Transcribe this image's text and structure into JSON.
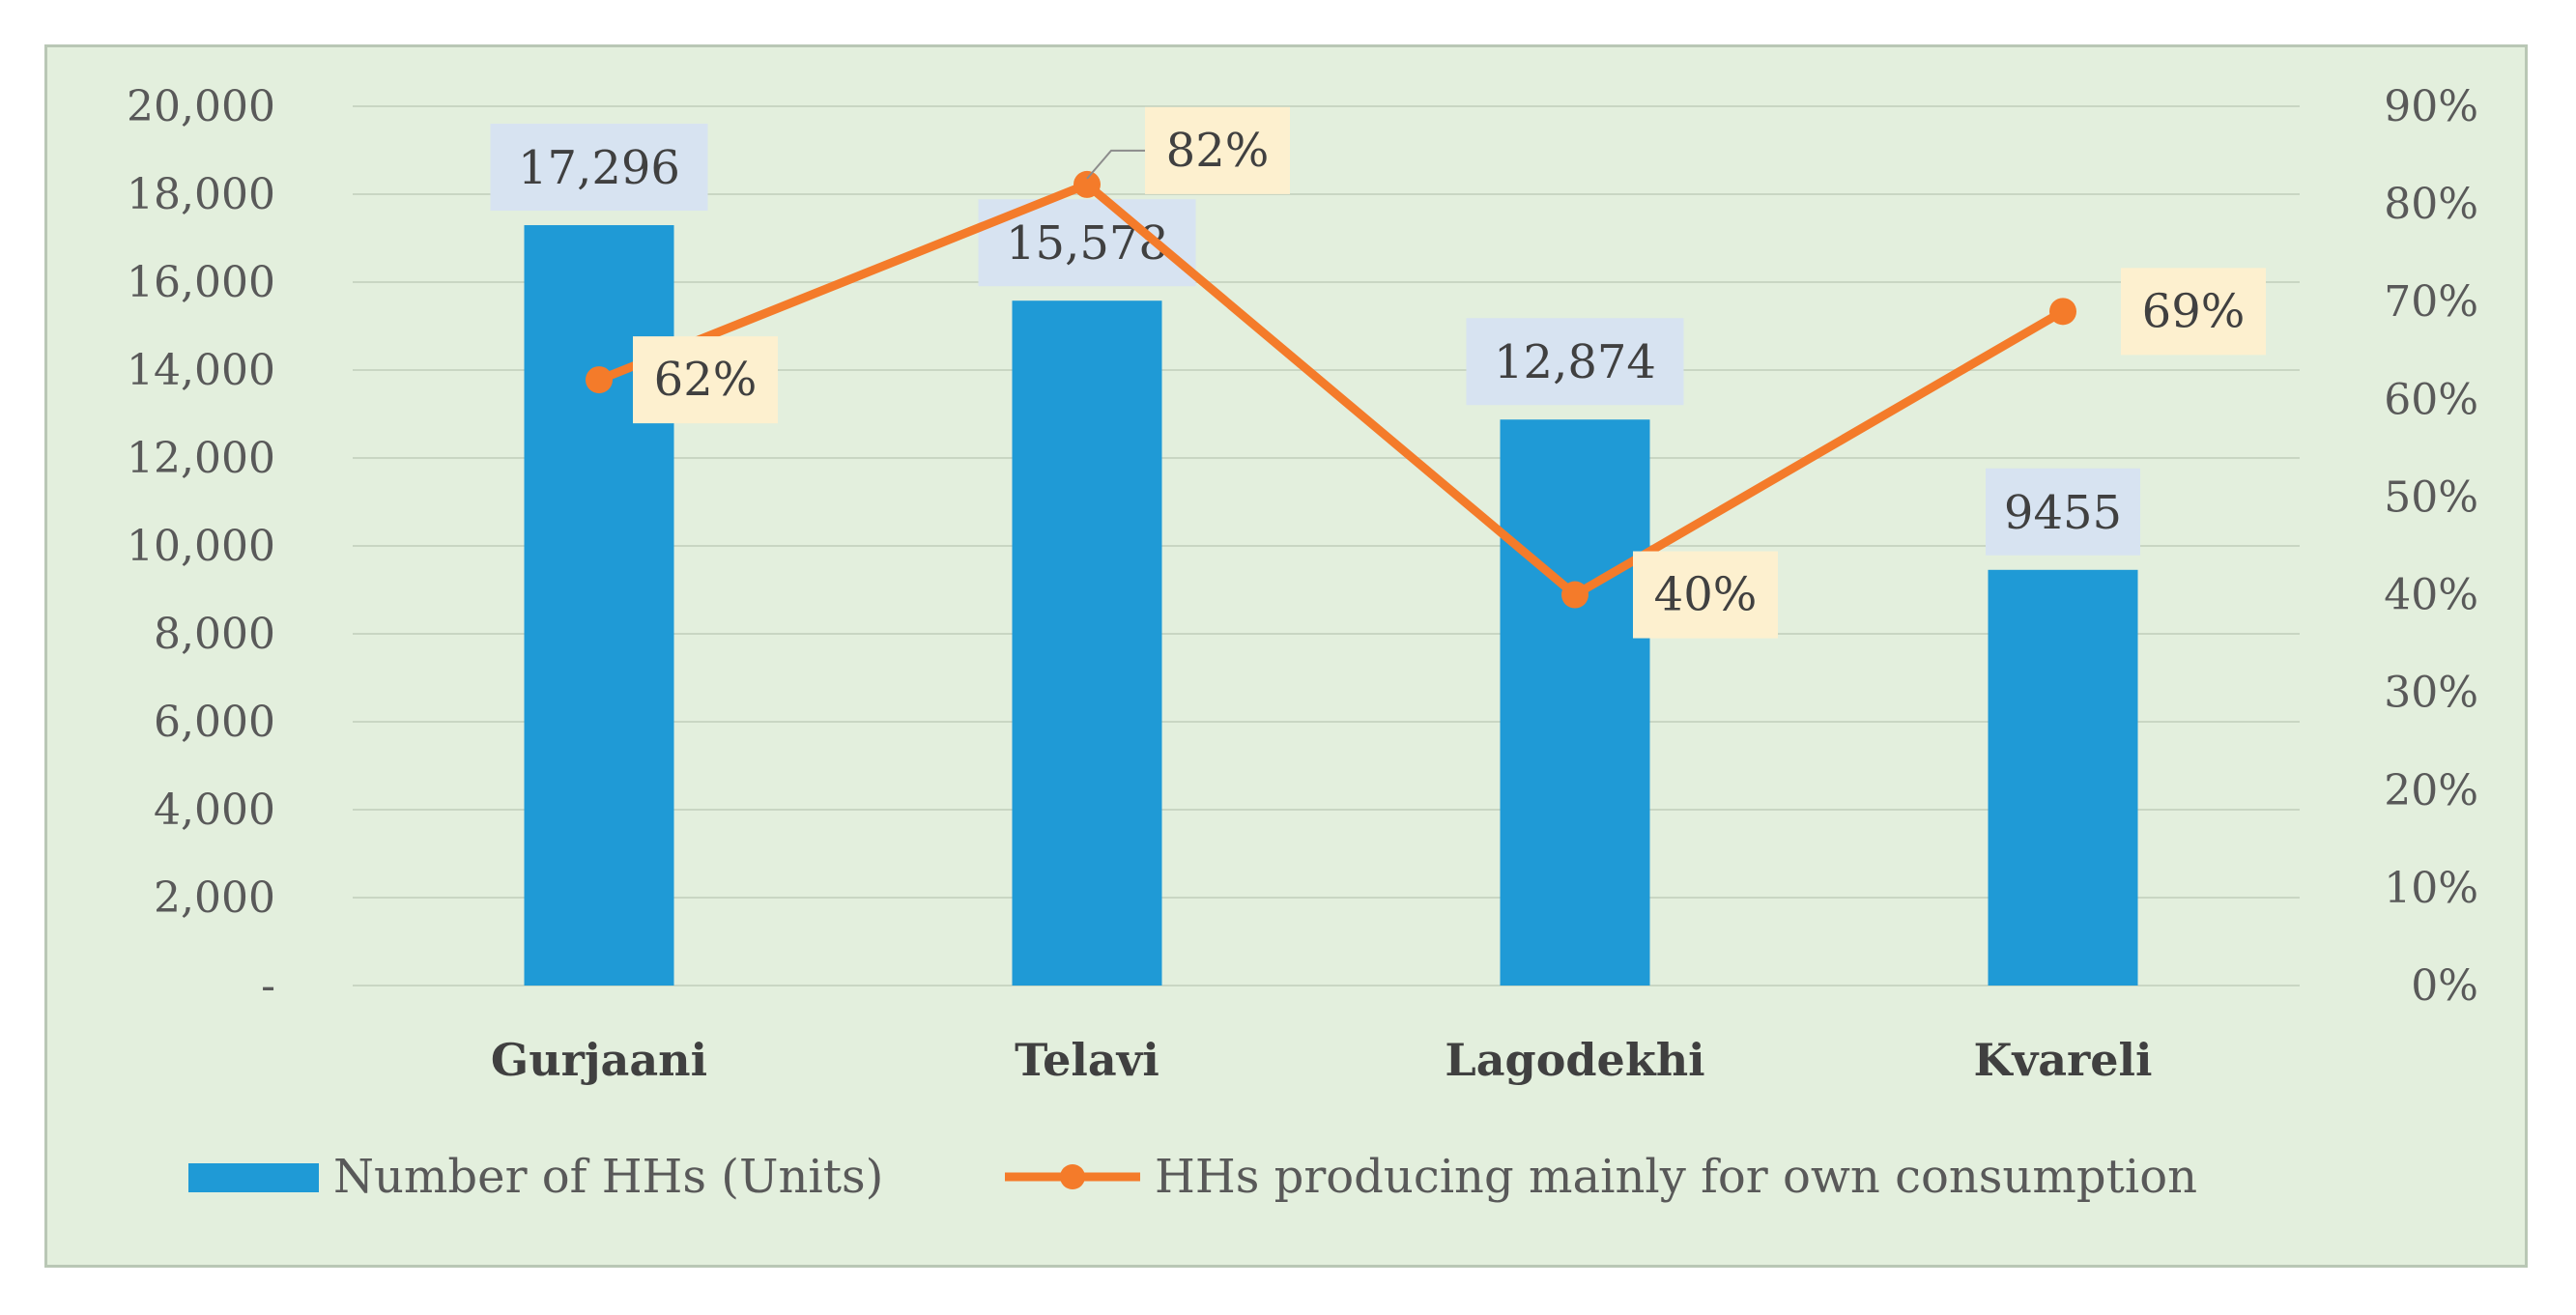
{
  "chart_data": {
    "type": "bar-line-combo",
    "categories": [
      "Gurjaani",
      "Telavi",
      "Lagodekhi",
      "Kvareli"
    ],
    "series": [
      {
        "name": "Number of HHs (Units)",
        "type": "bar",
        "axis": "left",
        "values": [
          17296,
          15578,
          12874,
          9455
        ],
        "labels": [
          "17,296",
          "15,578",
          "12,874",
          "9455"
        ],
        "color": "#1f9ad6"
      },
      {
        "name": "HHs producing mainly for own consumption",
        "type": "line",
        "axis": "right",
        "values": [
          62,
          82,
          40,
          69
        ],
        "labels": [
          "62%",
          "82%",
          "40%",
          "69%"
        ],
        "color": "#f47b2a"
      }
    ],
    "y_left": {
      "min": 0,
      "max": 20000,
      "ticks": [
        "-",
        "2,000",
        "4,000",
        "6,000",
        "8,000",
        "10,000",
        "12,000",
        "14,000",
        "16,000",
        "18,000",
        "20,000"
      ]
    },
    "y_right": {
      "min": 0,
      "max": 90,
      "ticks": [
        "0%",
        "10%",
        "20%",
        "30%",
        "40%",
        "50%",
        "60%",
        "70%",
        "80%",
        "90%"
      ]
    },
    "grid": true,
    "legend_position": "bottom",
    "bar_label_bg": "#d7e3f1",
    "line_label_bg": "#fdf0cf",
    "background": "#e3efdd",
    "gridline_color": "#c9d6c3"
  }
}
